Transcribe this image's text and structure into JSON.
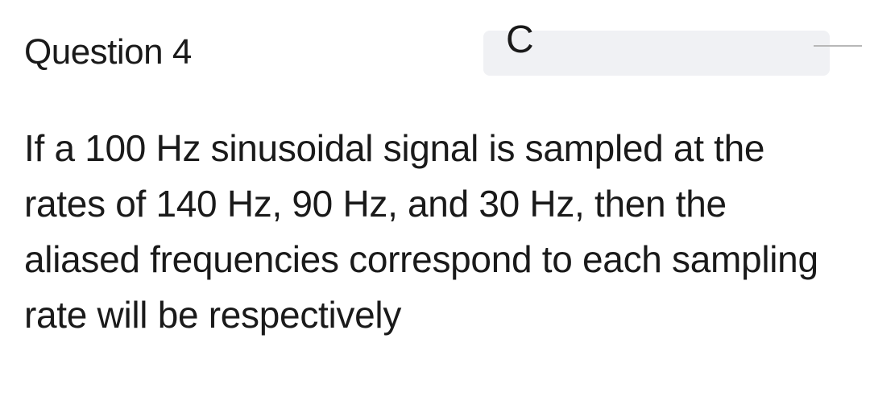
{
  "question": {
    "title": "Question 4",
    "body": "If a 100 Hz sinusoidal signal is sampled at the rates of 140 Hz, 90 Hz, and 30 Hz, then the aliased frequencies correspond to each sampling rate will be respectively",
    "badge_glyph": "C"
  },
  "colors": {
    "background": "#ffffff",
    "text": "#1a1a1a",
    "badge_bg": "#f0f1f4",
    "line": "#b8b8b8"
  },
  "typography": {
    "title_fontsize": 44,
    "body_fontsize": 46,
    "font_family": "-apple-system, BlinkMacSystemFont, 'Segoe UI', Arial, sans-serif"
  }
}
